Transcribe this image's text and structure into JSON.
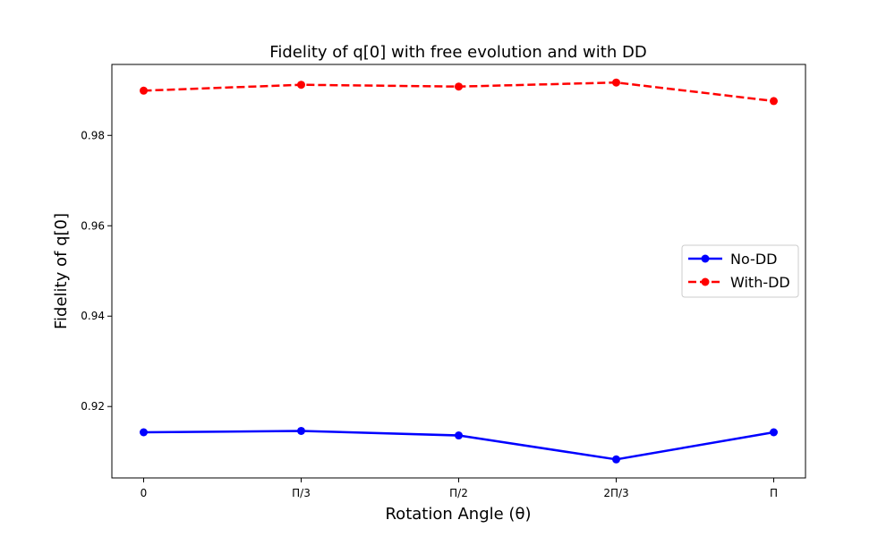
{
  "chart_data": {
    "type": "line",
    "title": "Fidelity of q[0] with free evolution and with DD",
    "xlabel": "Rotation Angle (θ)",
    "ylabel": "Fidelity of q[0]",
    "categories": [
      "0",
      "Π/3",
      "Π/2",
      "2Π/3",
      "Π"
    ],
    "series": [
      {
        "name": "No-DD",
        "values": [
          0.9143,
          0.9146,
          0.9136,
          0.9083,
          0.9143
        ],
        "color": "#0000ff",
        "style": "solid",
        "marker": "circle"
      },
      {
        "name": "With-DD",
        "values": [
          0.9899,
          0.9912,
          0.9908,
          0.9917,
          0.9876
        ],
        "color": "#ff0000",
        "style": "dashed",
        "marker": "circle"
      }
    ],
    "ylim": [
      0.9042,
      0.9957
    ],
    "yticks": [
      0.92,
      0.94,
      0.96,
      0.98
    ],
    "ytick_labels": [
      "0.92",
      "0.94",
      "0.96",
      "0.98"
    ],
    "grid": false,
    "legend_position": "center-right"
  }
}
